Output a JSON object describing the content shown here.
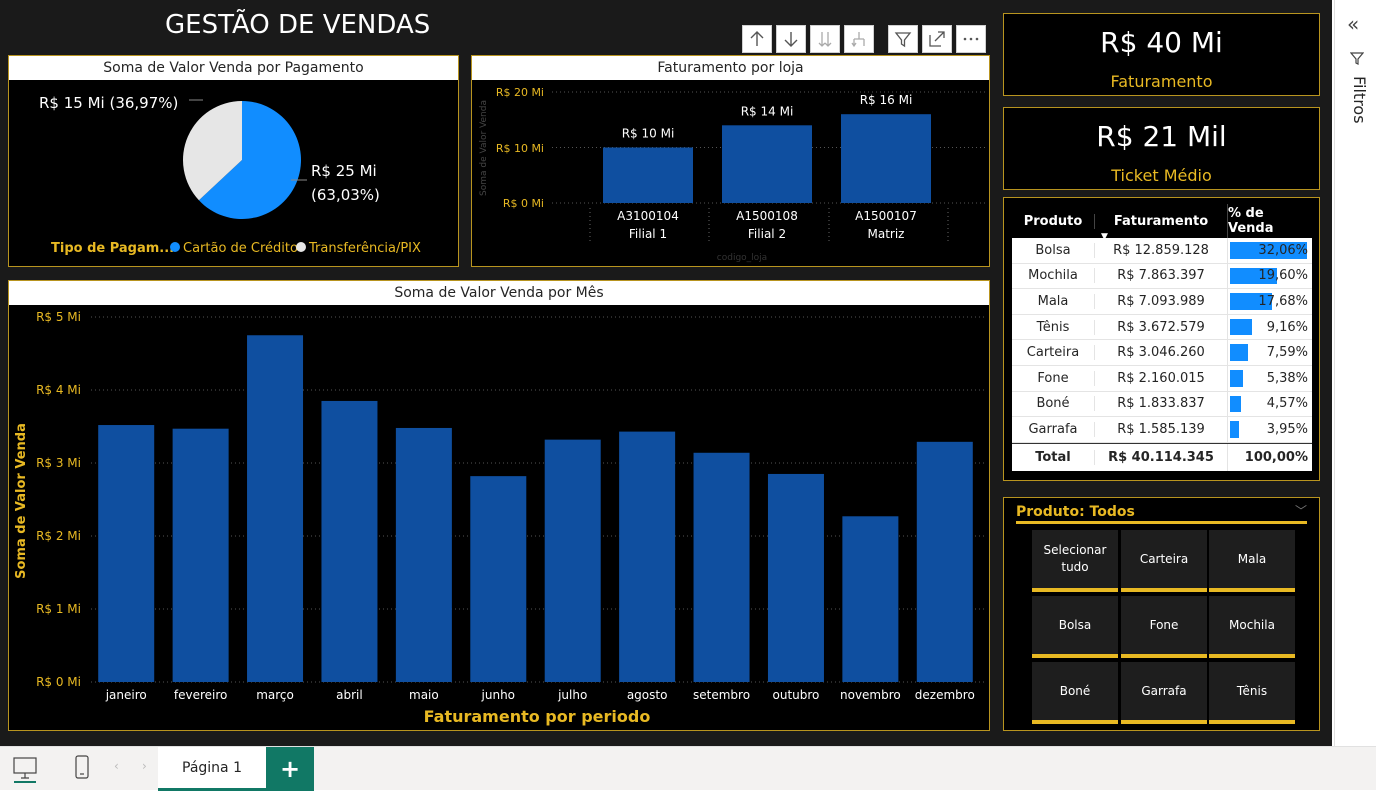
{
  "page_title": "GESTÃO DE VENDAS",
  "toolbar": {
    "icons": [
      "arrow-up-icon",
      "arrow-down-icon",
      "double-arrow-down-icon",
      "expand-hierarchy-icon",
      "filter-icon",
      "focus-mode-icon",
      "more-options-icon"
    ]
  },
  "kpis": [
    {
      "value": "R$ 40 Mi",
      "label": "Faturamento"
    },
    {
      "value": "R$ 21 Mil",
      "label": "Ticket Médio"
    }
  ],
  "pie_chart": {
    "title": "Soma de Valor Venda por Pagamento",
    "legend_title": "Tipo de Pagam...",
    "label_credit_1": "R$ 25 Mi",
    "label_credit_2": "(63,03%)",
    "label_pix": "R$ 15 Mi (36,97%)",
    "legend": [
      "Cartão de Crédito",
      "Transferência/PIX"
    ]
  },
  "store_chart": {
    "title": "Faturamento por loja",
    "ylabel": "Soma de Valor Venda",
    "xlabel": "codigo_loja",
    "yticks": [
      "R$ 20 Mi",
      "R$ 10 Mi",
      "R$ 0 Mi"
    ],
    "bars": [
      {
        "code": "A3100104",
        "name": "Filial 1",
        "label": "R$ 10 Mi"
      },
      {
        "code": "A1500108",
        "name": "Filial 2",
        "label": "R$ 14 Mi"
      },
      {
        "code": "A1500107",
        "name": "Matriz",
        "label": "R$ 16 Mi"
      }
    ]
  },
  "month_chart": {
    "title": "Soma de Valor Venda por Mês",
    "ylabel": "Soma de Valor Venda",
    "xlabel": "Faturamento por periodo",
    "yticks": [
      "R$ 5 Mi",
      "R$ 4 Mi",
      "R$ 3 Mi",
      "R$ 2 Mi",
      "R$ 1 Mi",
      "R$ 0 Mi"
    ]
  },
  "table": {
    "headers": [
      "Produto",
      "Faturamento",
      "% de Venda"
    ],
    "rows": [
      {
        "produto": "Bolsa",
        "fat": "R$ 12.859.128",
        "pct": "32,06%",
        "p": 32.06
      },
      {
        "produto": "Mochila",
        "fat": "R$ 7.863.397",
        "pct": "19,60%",
        "p": 19.6
      },
      {
        "produto": "Mala",
        "fat": "R$ 7.093.989",
        "pct": "17,68%",
        "p": 17.68
      },
      {
        "produto": "Tênis",
        "fat": "R$ 3.672.579",
        "pct": "9,16%",
        "p": 9.16
      },
      {
        "produto": "Carteira",
        "fat": "R$ 3.046.260",
        "pct": "7,59%",
        "p": 7.59
      },
      {
        "produto": "Fone",
        "fat": "R$ 2.160.015",
        "pct": "5,38%",
        "p": 5.38
      },
      {
        "produto": "Boné",
        "fat": "R$ 1.833.837",
        "pct": "4,57%",
        "p": 4.57
      },
      {
        "produto": "Garrafa",
        "fat": "R$ 1.585.139",
        "pct": "3,95%",
        "p": 3.95
      }
    ],
    "total": {
      "label": "Total",
      "fat": "R$ 40.114.345",
      "pct": "100,00%"
    }
  },
  "slicer": {
    "header": "Produto: Todos",
    "tiles": [
      "Selecionar tudo",
      "Carteira",
      "Mala",
      "Bolsa",
      "Fone",
      "Mochila",
      "Boné",
      "Garrafa",
      "Tênis"
    ]
  },
  "filters_pane": {
    "label": "Filtros"
  },
  "bottom": {
    "page_tab": "Página 1",
    "add_tab": "+"
  },
  "colors": {
    "accent": "#e8b923",
    "bar": "#0f4fa0",
    "credit": "#118dff",
    "pix": "#e6e6e6"
  },
  "chart_data": [
    {
      "type": "pie",
      "title": "Soma de Valor Venda por Pagamento",
      "categories": [
        "Cartão de Crédito",
        "Transferência/PIX"
      ],
      "values": [
        25,
        15
      ],
      "percentages": [
        63.03,
        36.97
      ],
      "legend": "bottom"
    },
    {
      "type": "bar",
      "title": "Faturamento por loja",
      "categories": [
        "A3100104 Filial 1",
        "A1500108 Filial 2",
        "A1500107 Matriz"
      ],
      "values": [
        10,
        14,
        16
      ],
      "ylabel": "Soma de Valor Venda",
      "xlabel": "codigo_loja",
      "ylim": [
        0,
        20
      ]
    },
    {
      "type": "bar",
      "title": "Soma de Valor Venda por Mês",
      "categories": [
        "janeiro",
        "fevereiro",
        "março",
        "abril",
        "maio",
        "junho",
        "julho",
        "agosto",
        "setembro",
        "outubro",
        "novembro",
        "dezembro"
      ],
      "values": [
        3.52,
        3.47,
        4.75,
        3.85,
        3.48,
        2.82,
        3.32,
        3.43,
        3.14,
        2.85,
        2.27,
        3.29
      ],
      "ylabel": "Soma de Valor Venda",
      "xlabel": "Faturamento por periodo",
      "ylim": [
        0,
        5
      ]
    }
  ]
}
